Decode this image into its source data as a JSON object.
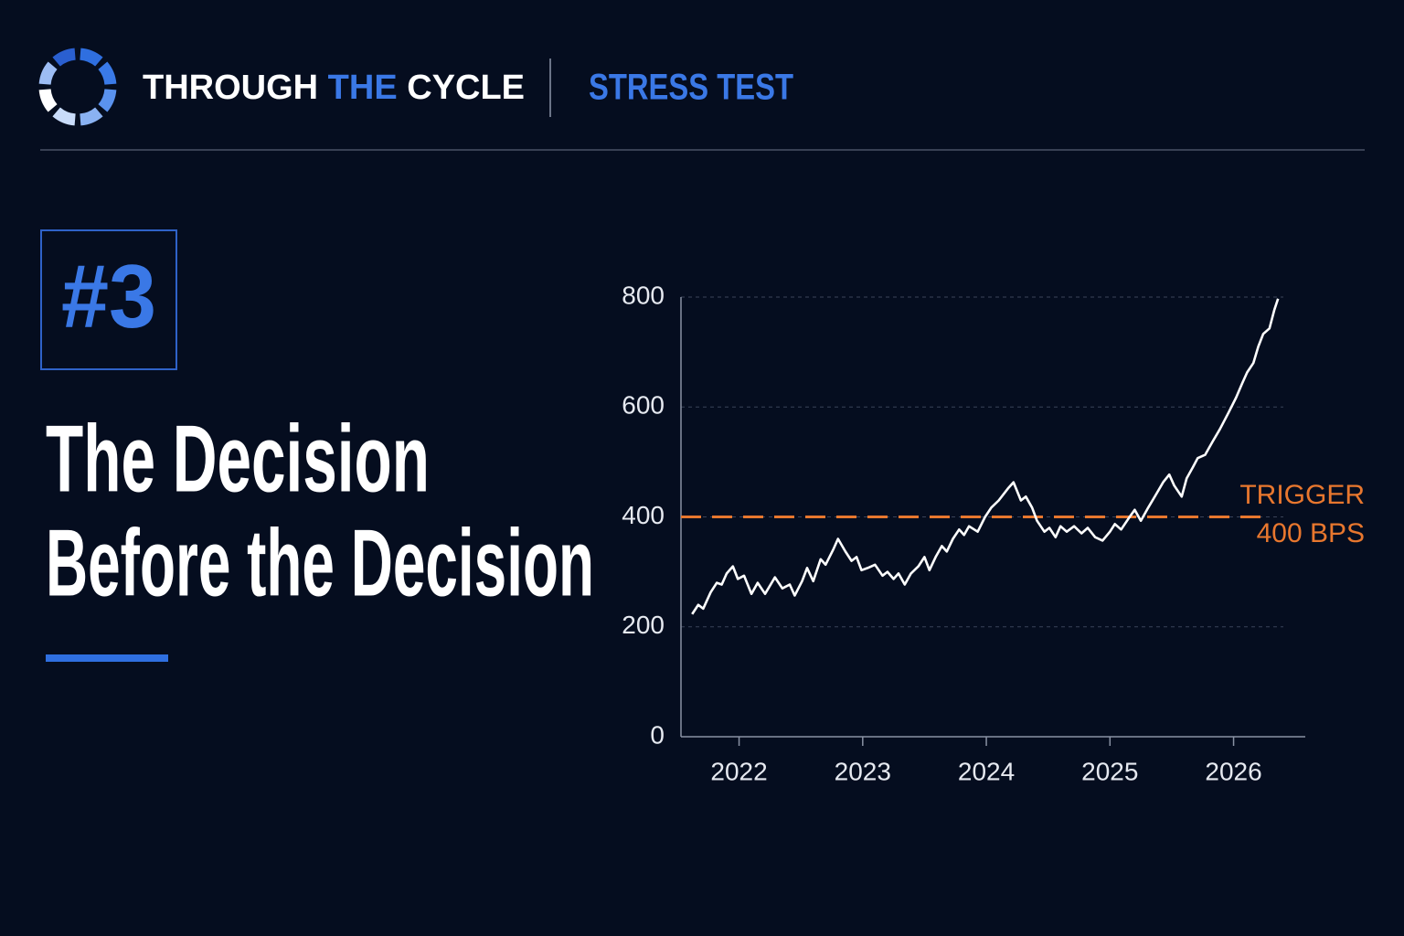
{
  "header": {
    "brand": {
      "part1": "THROUGH",
      "part2": "THE",
      "part3": "CYCLE"
    },
    "section": "STRESS TEST"
  },
  "badge": "#3",
  "title_lines": [
    "The Decision",
    "Before the Decision"
  ],
  "chart_data": {
    "type": "line",
    "x": [
      2021.62,
      2021.67,
      2021.71,
      2021.77,
      2021.82,
      2021.86,
      2021.9,
      2021.95,
      2021.99,
      2022.04,
      2022.1,
      2022.15,
      2022.21,
      2022.29,
      2022.35,
      2022.41,
      2022.45,
      2022.51,
      2022.55,
      2022.6,
      2022.66,
      2022.7,
      2022.76,
      2022.8,
      2022.86,
      2022.91,
      2022.95,
      2022.99,
      2023.04,
      2023.1,
      2023.16,
      2023.2,
      2023.25,
      2023.29,
      2023.34,
      2023.39,
      2023.45,
      2023.5,
      2023.54,
      2023.59,
      2023.64,
      2023.68,
      2023.73,
      2023.78,
      2023.82,
      2023.86,
      2023.93,
      2023.99,
      2024.04,
      2024.1,
      2024.18,
      2024.22,
      2024.28,
      2024.32,
      2024.37,
      2024.41,
      2024.47,
      2024.51,
      2024.56,
      2024.6,
      2024.65,
      2024.71,
      2024.77,
      2024.82,
      2024.88,
      2024.94,
      2025.0,
      2025.04,
      2025.09,
      2025.15,
      2025.2,
      2025.25,
      2025.31,
      2025.37,
      2025.43,
      2025.48,
      2025.52,
      2025.58,
      2025.62,
      2025.67,
      2025.71,
      2025.77,
      2025.83,
      2025.89,
      2025.96,
      2026.02,
      2026.07,
      2026.11,
      2026.16,
      2026.2,
      2026.24,
      2026.29,
      2026.33,
      2026.36
    ],
    "series": [
      {
        "color": "#ffffff",
        "values": [
          223,
          240,
          233,
          263,
          280,
          277,
          297,
          310,
          287,
          293,
          260,
          280,
          260,
          290,
          270,
          277,
          257,
          283,
          307,
          283,
          323,
          313,
          340,
          360,
          337,
          320,
          327,
          303,
          307,
          313,
          293,
          300,
          287,
          297,
          277,
          297,
          310,
          327,
          303,
          327,
          347,
          337,
          360,
          377,
          367,
          383,
          373,
          400,
          417,
          430,
          453,
          463,
          430,
          437,
          417,
          393,
          373,
          380,
          363,
          383,
          373,
          383,
          370,
          380,
          363,
          357,
          373,
          387,
          377,
          397,
          413,
          393,
          417,
          440,
          463,
          477,
          457,
          437,
          470,
          490,
          507,
          513,
          537,
          560,
          590,
          617,
          643,
          663,
          680,
          710,
          733,
          743,
          777,
          797
        ]
      }
    ],
    "xlim": [
      2021.53,
      2026.58
    ],
    "xticks": [
      2022,
      2023,
      2024,
      2025,
      2026
    ],
    "ylim": [
      0,
      800
    ],
    "yticks": [
      0,
      200,
      400,
      600,
      800
    ],
    "grid": true,
    "reference_line": {
      "value": 400,
      "color": "#e8772e",
      "labels": [
        "TRIGGER",
        "400 BPS"
      ]
    }
  }
}
